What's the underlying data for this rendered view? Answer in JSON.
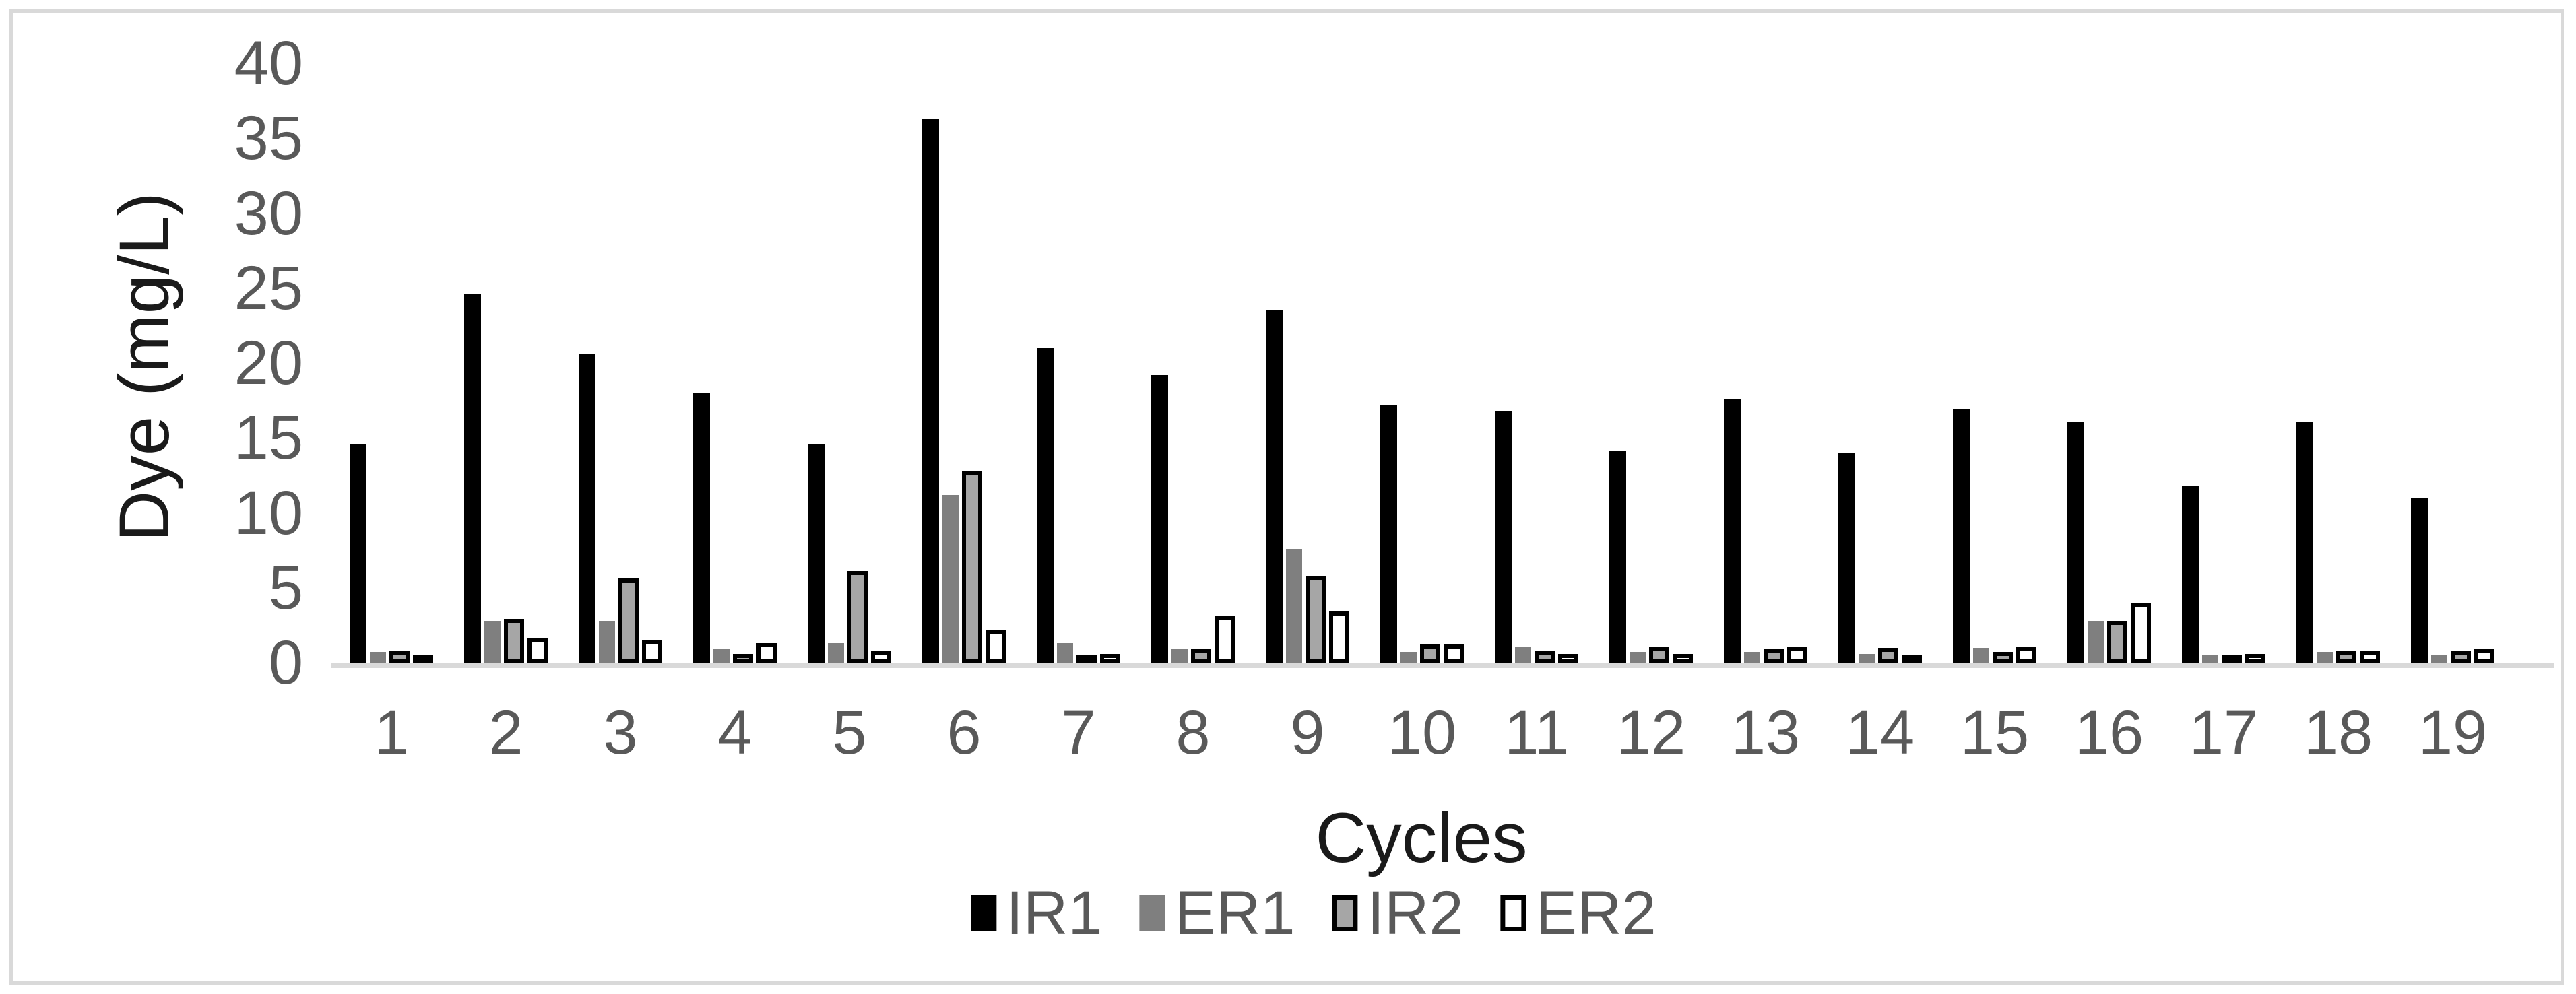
{
  "chart_data": {
    "type": "bar",
    "title": "",
    "xlabel": "Cycles",
    "ylabel": "Dye (mg/L)",
    "ylim": [
      0,
      40
    ],
    "ytick_step": 5,
    "yticks": [
      0,
      5,
      10,
      15,
      20,
      25,
      30,
      35,
      40
    ],
    "grid": false,
    "legend_position": "bottom",
    "categories": [
      "1",
      "2",
      "3",
      "4",
      "5",
      "6",
      "7",
      "8",
      "9",
      "10",
      "11",
      "12",
      "13",
      "14",
      "15",
      "16",
      "17",
      "18",
      "19"
    ],
    "series": [
      {
        "name": "IR1",
        "style": "ir1",
        "color": "#000000",
        "outline": false,
        "values": [
          14.6,
          24.6,
          20.6,
          18.0,
          14.6,
          36.3,
          21.0,
          19.2,
          23.5,
          17.2,
          16.8,
          14.1,
          17.6,
          14.0,
          16.9,
          16.1,
          11.8,
          16.1,
          11.0
        ]
      },
      {
        "name": "ER1",
        "style": "er1",
        "color": "#7f7f7f",
        "outline": false,
        "values": [
          0.7,
          2.8,
          2.8,
          0.9,
          1.3,
          11.2,
          1.3,
          0.9,
          7.6,
          0.7,
          1.1,
          0.7,
          0.7,
          0.6,
          1.0,
          2.8,
          0.5,
          0.7,
          0.5
        ]
      },
      {
        "name": "IR2",
        "style": "ir2",
        "color": "#a6a6a6",
        "outline": true,
        "values": [
          0.8,
          2.9,
          5.6,
          0.6,
          6.1,
          12.8,
          0.4,
          0.9,
          5.8,
          1.2,
          0.8,
          1.1,
          0.9,
          1.0,
          0.7,
          2.8,
          0.4,
          0.8,
          0.8
        ]
      },
      {
        "name": "ER2",
        "style": "er2",
        "color": "#ffffff",
        "outline": true,
        "values": [
          0.2,
          1.6,
          1.5,
          1.3,
          0.8,
          2.2,
          0.6,
          3.1,
          3.4,
          1.2,
          0.6,
          0.6,
          1.1,
          0.3,
          1.1,
          4.0,
          0.6,
          0.8,
          0.9
        ]
      }
    ],
    "colors": {
      "axis_line": "#d9d9d9",
      "frame_border": "#d9d9d9",
      "tick_text": "#595959",
      "title_text": "#1a1a1a"
    }
  },
  "axis": {
    "y_title": "Dye (mg/L)",
    "x_title": "Cycles"
  },
  "legend": {
    "items": [
      {
        "label": "IR1"
      },
      {
        "label": "ER1"
      },
      {
        "label": "IR2"
      },
      {
        "label": "ER2"
      }
    ]
  }
}
